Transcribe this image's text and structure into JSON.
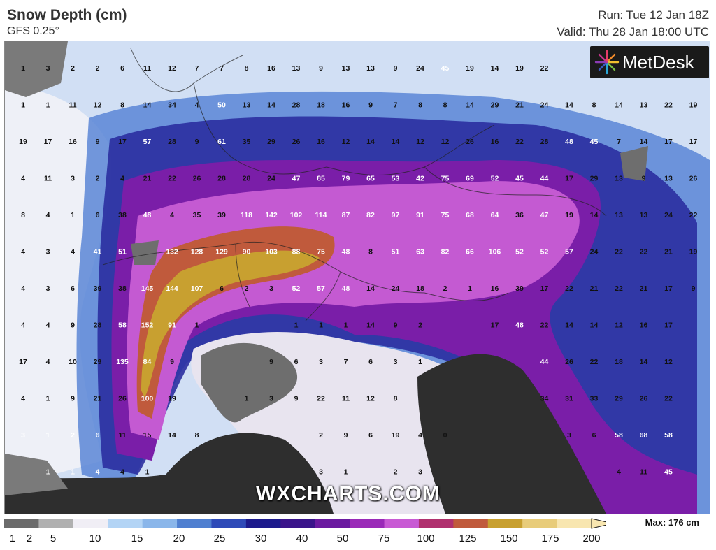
{
  "header": {
    "title": "Snow Depth (cm)",
    "model": "GFS 0.25°",
    "run": "Run: Tue 12 Jan 18Z",
    "valid": "Valid: Thu 28 Jan 18:00 UTC"
  },
  "logo": {
    "text": "MetDesk",
    "icon": "metdesk-starburst-icon"
  },
  "watermark": "WXCHARTS.COM",
  "legend": {
    "max_label": "Max: 176 cm",
    "ticks": [
      "1",
      "2",
      "5",
      "10",
      "15",
      "20",
      "25",
      "30",
      "40",
      "50",
      "75",
      "100",
      "125",
      "150",
      "175",
      "200"
    ],
    "colors": [
      "#6b6b6b",
      "#b0b0b0",
      "#f0eef5",
      "#b3d4f5",
      "#8ab6ea",
      "#4f7fd0",
      "#2e4ab8",
      "#1c1a8c",
      "#3a148a",
      "#6b1aa0",
      "#9a2ab8",
      "#c85ad4",
      "#b0306e",
      "#c05a3c",
      "#c8a030",
      "#e8cc7a",
      "#f8e6b0"
    ]
  },
  "map": {
    "grid_values": [
      [
        "1",
        "3",
        "2",
        "2",
        "6",
        "11",
        "12",
        "7",
        "7",
        "8",
        "16",
        "13",
        "9",
        "13",
        "13",
        "9",
        "24",
        "45",
        "19",
        "14",
        "19",
        "22",
        "",
        ""
      ],
      [
        "1",
        "1",
        "11",
        "12",
        "8",
        "14",
        "34",
        "4",
        "50",
        "13",
        "14",
        "28",
        "18",
        "16",
        "9",
        "7",
        "8",
        "8",
        "14",
        "29",
        "21",
        "24",
        "14",
        "8",
        "14",
        "13",
        "22",
        "19"
      ],
      [
        "19",
        "17",
        "16",
        "9",
        "17",
        "57",
        "28",
        "9",
        "61",
        "35",
        "29",
        "26",
        "16",
        "12",
        "14",
        "14",
        "12",
        "12",
        "26",
        "16",
        "22",
        "28",
        "48",
        "45",
        "7",
        "14",
        "17",
        "17"
      ],
      [
        "4",
        "11",
        "3",
        "2",
        "4",
        "21",
        "22",
        "26",
        "28",
        "28",
        "24",
        "47",
        "85",
        "79",
        "65",
        "53",
        "42",
        "75",
        "69",
        "52",
        "45",
        "44",
        "17",
        "29",
        "13",
        "9",
        "13",
        "26"
      ],
      [
        "8",
        "4",
        "1",
        "6",
        "38",
        "48",
        "4",
        "35",
        "39",
        "118",
        "142",
        "102",
        "114",
        "87",
        "82",
        "97",
        "91",
        "75",
        "68",
        "64",
        "36",
        "47",
        "19",
        "14",
        "13",
        "13",
        "24",
        "22"
      ],
      [
        "4",
        "3",
        "4",
        "41",
        "51",
        "",
        "132",
        "128",
        "129",
        "90",
        "103",
        "88",
        "75",
        "48",
        "8",
        "51",
        "63",
        "82",
        "66",
        "106",
        "52",
        "52",
        "57",
        "24",
        "22",
        "22",
        "21",
        "19"
      ],
      [
        "4",
        "3",
        "6",
        "39",
        "38",
        "145",
        "144",
        "107",
        "6",
        "2",
        "3",
        "52",
        "57",
        "48",
        "14",
        "24",
        "18",
        "2",
        "1",
        "16",
        "39",
        "17",
        "22",
        "21",
        "22",
        "21",
        "17",
        "9"
      ],
      [
        "4",
        "4",
        "9",
        "28",
        "58",
        "152",
        "91",
        "1",
        "",
        "",
        "",
        "1",
        "1",
        "1",
        "14",
        "9",
        "2",
        "",
        "",
        "17",
        "48",
        "22",
        "14",
        "14",
        "12",
        "16",
        "17"
      ],
      [
        "17",
        "4",
        "10",
        "29",
        "135",
        "84",
        "9",
        "",
        "",
        "",
        "9",
        "6",
        "3",
        "7",
        "6",
        "3",
        "1",
        "",
        "",
        "",
        "",
        "44",
        "26",
        "22",
        "18",
        "14",
        "12"
      ],
      [
        "4",
        "1",
        "9",
        "21",
        "26",
        "100",
        "19",
        "",
        "",
        "1",
        "3",
        "9",
        "22",
        "11",
        "12",
        "8",
        "",
        "",
        "",
        "",
        "",
        "34",
        "31",
        "33",
        "29",
        "26",
        "22"
      ],
      [
        "3",
        "1",
        "2",
        "6",
        "11",
        "15",
        "14",
        "8",
        "",
        "",
        "",
        "",
        "2",
        "9",
        "6",
        "19",
        "4",
        "0",
        "",
        "",
        "",
        "",
        "3",
        "6",
        "58",
        "68",
        "58"
      ],
      [
        "",
        "1",
        "1",
        "4",
        "4",
        "1",
        "",
        "",
        "",
        "",
        "",
        "",
        "3",
        "1",
        "",
        "2",
        "3",
        "",
        "",
        "",
        "",
        "",
        "",
        "",
        "4",
        "11",
        "45"
      ]
    ]
  }
}
